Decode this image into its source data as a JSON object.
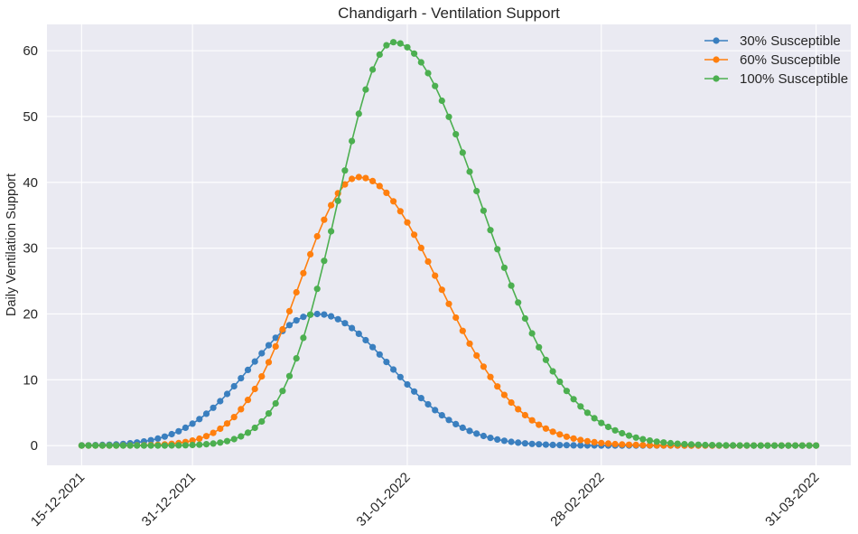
{
  "chart_data": {
    "type": "line",
    "title": "Chandigarh - Ventilation Support",
    "xlabel": "",
    "ylabel": "Daily Ventilation Support",
    "x_start": "2021-12-15",
    "x_end": "2022-03-31",
    "x_tick_labels": [
      "15-12-2021",
      "31-12-2021",
      "31-01-2022",
      "28-02-2022",
      "31-03-2022"
    ],
    "y_ticks": [
      0,
      10,
      20,
      30,
      40,
      50,
      60
    ],
    "ylim": [
      -3,
      64
    ],
    "xlim": [
      "2021-12-10",
      "2022-04-05"
    ],
    "grid": true,
    "legend_position": "top-right",
    "markers": "circle",
    "series": [
      {
        "name": "30% Susceptible",
        "color": "#3a7fbf",
        "peak": 20.0,
        "peak_date": "2022-01-18",
        "sigma_rise": 9.5,
        "sigma_fall": 10.5
      },
      {
        "name": "60% Susceptible",
        "color": "#ff7f0e",
        "peak": 40.8,
        "peak_date": "2022-01-24",
        "sigma_rise": 8.5,
        "sigma_fall": 11.5
      },
      {
        "name": "100% Susceptible",
        "color": "#4caf50",
        "peak": 61.3,
        "peak_date": "2022-01-29",
        "sigma_rise": 8.0,
        "sigma_fall": 12.5
      }
    ]
  }
}
